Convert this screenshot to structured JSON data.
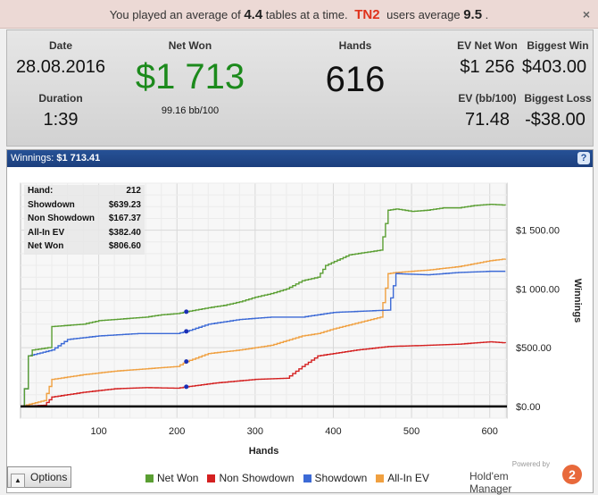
{
  "notice": {
    "text_before": "You played an average of",
    "avg_tables": "4.4",
    "text_middle": "tables at a time.",
    "badge": "TN2",
    "text_users": "users average",
    "users_avg": "9.5",
    "text_end": ".",
    "close": "×"
  },
  "summary": {
    "date_label": "Date",
    "date": "28.08.2016",
    "duration_label": "Duration",
    "duration": "1:39",
    "net_won_label": "Net Won",
    "net_won": "$1 713",
    "bb_rate": "99.16 bb/100",
    "hands_label": "Hands",
    "hands": "616",
    "ev_net_won_label": "EV Net Won",
    "ev_net_won": "$1 256",
    "biggest_win_label": "Biggest Win",
    "biggest_win": "$403.00",
    "ev_bb_label": "EV (bb/100)",
    "ev_bb": "71.48",
    "biggest_loss_label": "Biggest Loss",
    "biggest_loss": "-$38.00"
  },
  "winnings_panel": {
    "title": "Winnings:",
    "amount": "$1 713.41",
    "help": "?"
  },
  "tooltip": {
    "rows": [
      {
        "label": "Hand:",
        "value": "212"
      },
      {
        "label": "Showdown",
        "value": "$639.23"
      },
      {
        "label": "Non Showdown",
        "value": "$167.37"
      },
      {
        "label": "All-In EV",
        "value": "$382.40"
      },
      {
        "label": "Net Won",
        "value": "$806.60"
      }
    ]
  },
  "options_button": {
    "label": "Options",
    "icon": "triangle-up-icon"
  },
  "branding": {
    "powered_by": "Powered by",
    "name": "Hold'em Manager",
    "logo": "2"
  },
  "chart_data": {
    "type": "line",
    "xlabel": "Hands",
    "ylabel": "Winnings",
    "xlim": [
      0,
      622
    ],
    "ylim": [
      -100,
      1900
    ],
    "x_ticks": [
      100,
      200,
      300,
      400,
      500,
      600
    ],
    "y_ticks": [
      0,
      500,
      1000,
      1500
    ],
    "y_tick_labels": [
      "$0.00",
      "$500.00",
      "$1 000.00",
      "$1 500.00"
    ],
    "grid": true,
    "legend_position": "bottom",
    "highlight_x": 212,
    "series": [
      {
        "name": "Net Won",
        "color": "#5a9e32",
        "x": [
          0,
          5,
          10,
          15,
          35,
          40,
          60,
          80,
          100,
          120,
          140,
          160,
          180,
          200,
          212,
          240,
          260,
          280,
          300,
          320,
          340,
          360,
          380,
          390,
          420,
          460,
          470,
          480,
          500,
          520,
          540,
          560,
          580,
          600,
          620
        ],
        "y": [
          0,
          150,
          430,
          480,
          500,
          680,
          690,
          700,
          730,
          740,
          750,
          760,
          780,
          790,
          806,
          840,
          860,
          890,
          930,
          960,
          1000,
          1070,
          1100,
          1200,
          1290,
          1330,
          1670,
          1680,
          1660,
          1670,
          1690,
          1690,
          1710,
          1720,
          1713
        ]
      },
      {
        "name": "Non Showdown",
        "color": "#d42020",
        "x": [
          0,
          30,
          40,
          80,
          120,
          160,
          200,
          212,
          250,
          300,
          340,
          360,
          380,
          400,
          430,
          470,
          520,
          560,
          600,
          620
        ],
        "y": [
          0,
          10,
          80,
          120,
          150,
          160,
          155,
          167,
          200,
          230,
          240,
          340,
          430,
          450,
          480,
          510,
          520,
          530,
          550,
          540
        ]
      },
      {
        "name": "Showdown",
        "color": "#3c6ad6",
        "x": [
          0,
          5,
          10,
          40,
          60,
          100,
          150,
          200,
          212,
          240,
          280,
          320,
          360,
          400,
          470,
          480,
          520,
          560,
          600,
          620
        ],
        "y": [
          0,
          150,
          430,
          480,
          570,
          600,
          620,
          620,
          639,
          700,
          740,
          760,
          760,
          800,
          820,
          1130,
          1120,
          1140,
          1150,
          1150
        ]
      },
      {
        "name": "All-In EV",
        "color": "#f0a040",
        "x": [
          0,
          30,
          40,
          80,
          120,
          160,
          200,
          212,
          240,
          280,
          320,
          360,
          380,
          400,
          460,
          470,
          480,
          520,
          560,
          600,
          620
        ],
        "y": [
          0,
          50,
          230,
          270,
          300,
          320,
          340,
          382,
          450,
          480,
          520,
          600,
          620,
          660,
          760,
          1130,
          1140,
          1160,
          1190,
          1240,
          1256
        ]
      }
    ]
  }
}
